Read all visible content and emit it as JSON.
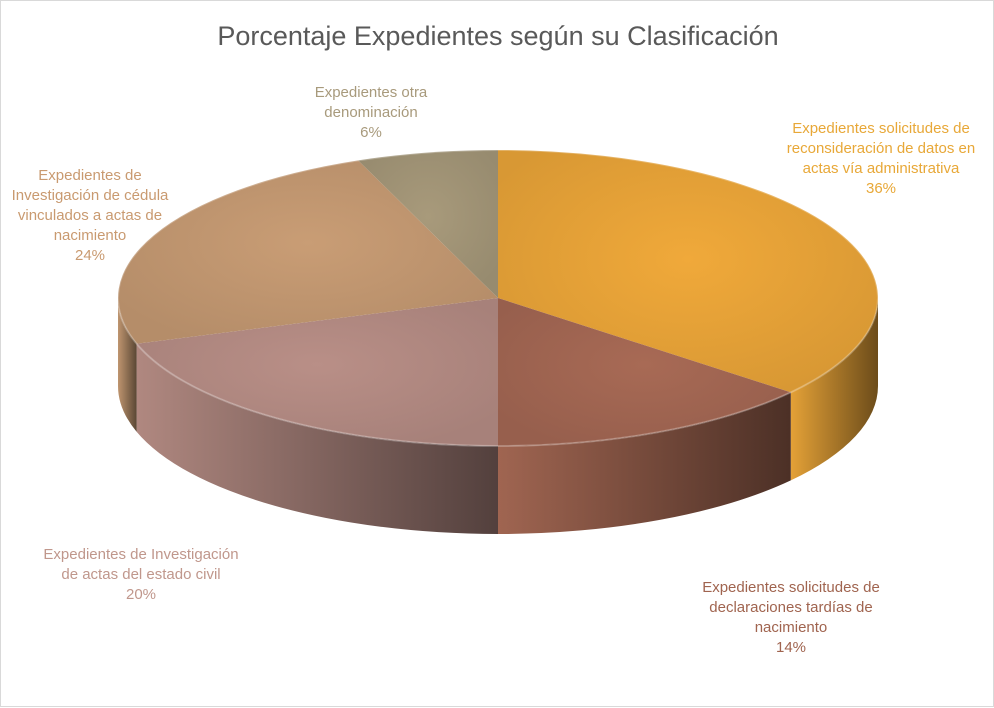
{
  "chart_data": {
    "type": "pie",
    "title": "Porcentaje Expedientes según su Clasificación",
    "categories": [
      "Expedientes solicitudes de reconsideración de datos en actas vía administrativa",
      "Expedientes solicitudes de declaraciones tardías de nacimiento",
      "Expedientes de Investigación de actas del estado civil",
      "Expedientes de Investigación de cédula vinculados a actas de nacimiento",
      "Expedientes otra denominación"
    ],
    "values": [
      36,
      14,
      20,
      24,
      6
    ],
    "value_labels": [
      "36%",
      "14%",
      "20%",
      "24%",
      "6%"
    ],
    "colors": [
      "#f0a93a",
      "#a86a55",
      "#b98f87",
      "#c99d75",
      "#a89a7b"
    ],
    "label_colors": [
      "#e8a838",
      "#a0644f",
      "#c0978c",
      "#c99a70",
      "#a89a7c"
    ],
    "legend": "none",
    "grid": false
  }
}
